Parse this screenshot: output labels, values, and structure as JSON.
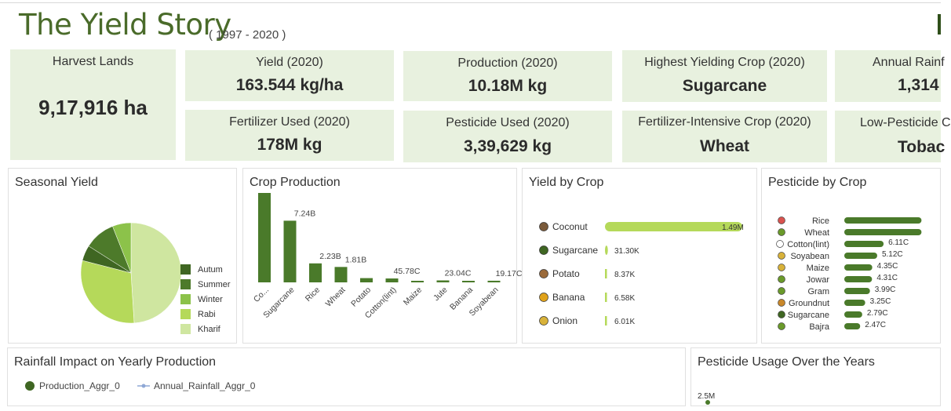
{
  "header": {
    "title": "The Yield Story",
    "subtitle": "( 1997 - 2020 )"
  },
  "kpis": {
    "harvest": {
      "label": "Harvest Lands",
      "value": "9,17,916 ha"
    },
    "yield": {
      "label": "Yield (2020)",
      "value": "163.544 kg/ha"
    },
    "production": {
      "label": "Production (2020)",
      "value": "10.18M kg"
    },
    "highest_crop": {
      "label": "Highest Yielding Crop (2020)",
      "value": "Sugarcane"
    },
    "rainfall": {
      "label": "Annual Rainf",
      "value": "1,314"
    },
    "fertilizer": {
      "label": "Fertilizer Used (2020)",
      "value": "178M kg"
    },
    "pesticide": {
      "label": "Pesticide Used (2020)",
      "value": "3,39,629 kg"
    },
    "fert_crop": {
      "label": "Fertilizer-Intensive Crop (2020)",
      "value": "Wheat"
    },
    "low_pest": {
      "label": "Low-Pesticide C",
      "value": "Tobac"
    }
  },
  "cards": {
    "seasonal": {
      "title": "Seasonal Yield"
    },
    "crop_production": {
      "title": "Crop Production"
    },
    "yield_by_crop": {
      "title": "Yield by Crop"
    },
    "pesticide_by_crop": {
      "title": "Pesticide by Crop"
    },
    "rainfall_impact": {
      "title": "Rainfall Impact on Yearly Production",
      "legend": [
        "Production_Aggr_0",
        "Annual_Rainfall_Aggr_0"
      ]
    },
    "pesticide_years": {
      "title": "Pesticide Usage Over the Years",
      "tick": "2.5M"
    }
  },
  "colors": {
    "dark_green": "#4a7a2a",
    "mid_green": "#6f9f3a",
    "light_green": "#b5d95a",
    "pale_green": "#cfe6a0",
    "kpi_bg": "#e8f1df",
    "title_green": "#4a6b2a",
    "rainfall_blue": "#8fa8d6"
  },
  "chart_data": [
    {
      "type": "pie",
      "categories": [
        "Autum",
        "Summer",
        "Winter",
        "Rabi",
        "Kharif"
      ],
      "values": [
        5,
        10,
        6,
        30,
        49
      ],
      "colors": [
        "#3f6622",
        "#4d7a2a",
        "#8cc24a",
        "#b5d95a",
        "#cfe6a0"
      ]
    },
    {
      "type": "bar",
      "categories": [
        "Co...",
        "Sugarcane",
        "Rice",
        "Wheat",
        "Potato",
        "Cotton(lint)",
        "Maize",
        "Jute",
        "Banana",
        "Soyabean"
      ],
      "values": [
        10.5,
        7.24,
        2.23,
        1.81,
        0.5,
        0.4578,
        0.15,
        0.2304,
        0.1,
        0.1917
      ],
      "labels": [
        "",
        "7.24B",
        "2.23B",
        "1.81B",
        "",
        "45.78C",
        "",
        "23.04C",
        "",
        "19.17C"
      ]
    },
    {
      "type": "bar",
      "orientation": "horizontal",
      "categories": [
        "Coconut",
        "Sugarcane",
        "Potato",
        "Banana",
        "Onion"
      ],
      "values": [
        1490000,
        31300,
        8370,
        6580,
        6010
      ],
      "labels": [
        "1.49M",
        "31.30K",
        "8.37K",
        "6.58K",
        "6.01K"
      ],
      "icons": [
        "coconut-icon",
        "sugarcane-icon",
        "potato-icon",
        "banana-icon",
        "onion-icon"
      ]
    },
    {
      "type": "bar",
      "orientation": "horizontal",
      "categories": [
        "Rice",
        "Wheat",
        "Cotton(lint)",
        "Soyabean",
        "Maize",
        "Jowar",
        "Gram",
        "Groundnut",
        "Sugarcane",
        "Bajra"
      ],
      "values": [
        12,
        12,
        6.11,
        5.12,
        4.35,
        4.31,
        3.99,
        3.25,
        2.79,
        2.47
      ],
      "labels": [
        "",
        "",
        "6.11C",
        "5.12C",
        "4.35C",
        "4.31C",
        "3.99C",
        "3.25C",
        "2.79C",
        "2.47C"
      ],
      "icons": [
        "rice-icon",
        "wheat-icon",
        "cotton-icon",
        "soyabean-icon",
        "maize-icon",
        "jowar-icon",
        "gram-icon",
        "groundnut-icon",
        "sugarcane-icon",
        "bajra-icon"
      ]
    }
  ]
}
